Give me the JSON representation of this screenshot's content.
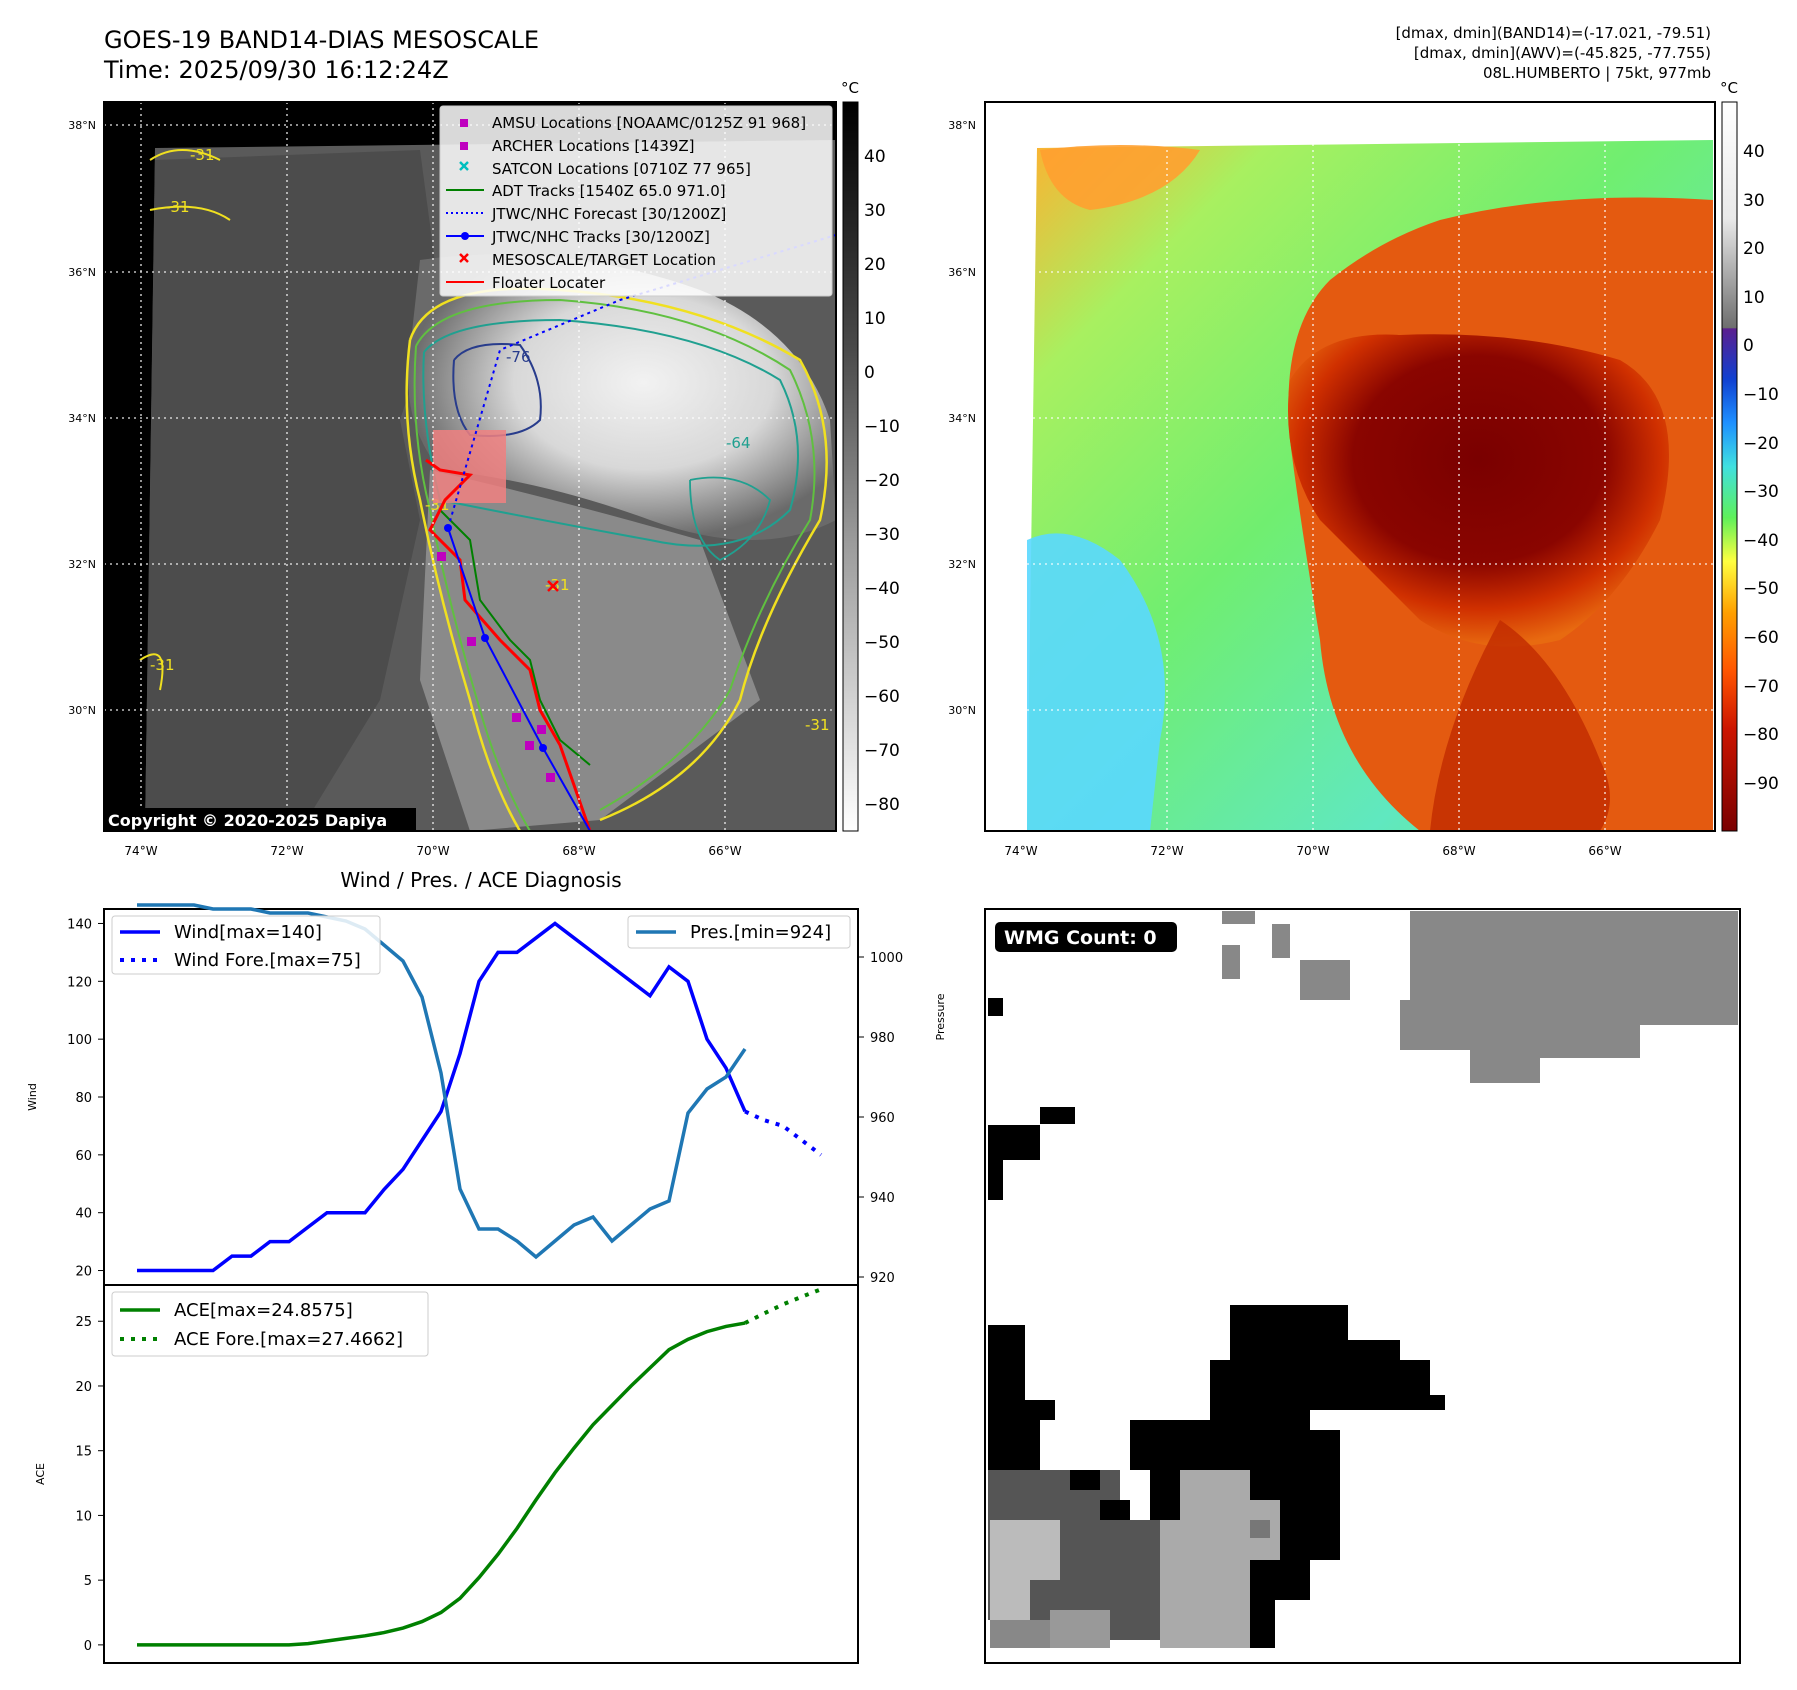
{
  "header": {
    "title_line1": "GOES-19 BAND14-DIAS MESOSCALE",
    "title_line2": "Time: 2025/09/30 16:12:24Z",
    "stats_line1": "[dmax, dmin](BAND14)=(-17.021, -79.51)",
    "stats_line2": "[dmax, dmin](AWV)=(-45.825, -77.755)",
    "stats_line3": "08L.HUMBERTO | 75kt, 977mb"
  },
  "map_axes": {
    "lat_labels": [
      "38°N",
      "36°N",
      "34°N",
      "32°N",
      "30°N"
    ],
    "lon_labels": [
      "74°W",
      "72°W",
      "70°W",
      "68°W",
      "66°W"
    ],
    "copyright": "Copyright © 2020-2025 Dapiya"
  },
  "colorbar_left": {
    "unit": "°C",
    "ticks": [
      "40",
      "30",
      "20",
      "10",
      "0",
      "−10",
      "−20",
      "−30",
      "−40",
      "−50",
      "−60",
      "−70",
      "−80"
    ]
  },
  "colorbar_right": {
    "unit": "°C",
    "ticks": [
      "40",
      "30",
      "20",
      "10",
      "0",
      "−10",
      "−20",
      "−30",
      "−40",
      "−50",
      "−60",
      "−70",
      "−80",
      "−90"
    ]
  },
  "legend": {
    "items": [
      {
        "label": "AMSU Locations [NOAAMC/0125Z 91 968]",
        "color": "#bf00bf",
        "marker": "square"
      },
      {
        "label": "ARCHER Locations [1439Z]",
        "color": "#bf00bf",
        "marker": "square"
      },
      {
        "label": "SATCON Locations [0710Z 77 965]",
        "color": "#00bfbf",
        "marker": "x"
      },
      {
        "label": "ADT Tracks [1540Z 65.0 971.0]",
        "color": "#008000",
        "marker": "line"
      },
      {
        "label": "JTWC/NHC Forecast [30/1200Z]",
        "color": "#0000ff",
        "marker": "dotted"
      },
      {
        "label": "JTWC/NHC Tracks [30/1200Z]",
        "color": "#0000ff",
        "marker": "line-dot"
      },
      {
        "label": "MESOSCALE/TARGET Location",
        "color": "#ff0000",
        "marker": "x"
      },
      {
        "label": "Floater Locater",
        "color": "#ff0000",
        "marker": "line"
      }
    ]
  },
  "contour_labels": [
    "-76",
    "-64",
    "-31",
    "-31",
    "-31",
    "-31",
    "-31",
    "-31"
  ],
  "wmg": {
    "label": "WMG Count: 0"
  },
  "chart_data": [
    {
      "type": "line",
      "title": "Wind / Pres. / ACE Diagnosis",
      "ylabel": "Wind",
      "ylabel_right": "Pressure",
      "ylim": [
        15,
        145
      ],
      "ylim_right": [
        918,
        1012
      ],
      "yticks": [
        20,
        40,
        60,
        80,
        100,
        120,
        140
      ],
      "yticks_right": [
        920,
        940,
        960,
        980,
        1000
      ],
      "x": [
        0,
        1,
        2,
        3,
        4,
        5,
        6,
        7,
        8,
        9,
        10,
        11,
        12,
        13,
        14,
        15,
        16,
        17,
        18,
        19,
        20,
        21,
        22,
        23,
        24,
        25,
        26,
        27,
        28,
        29,
        30,
        31,
        32,
        33,
        34,
        35,
        36
      ],
      "series": [
        {
          "name": "Wind[max=140]",
          "color": "#0000ff",
          "style": "solid",
          "x": [
            0,
            1,
            2,
            3,
            4,
            5,
            6,
            7,
            8,
            9,
            10,
            11,
            12,
            13,
            14,
            15,
            16,
            17,
            18,
            19,
            20,
            21,
            22,
            23,
            24,
            25,
            26,
            27,
            28,
            29,
            30,
            31,
            32
          ],
          "values": [
            20,
            20,
            20,
            20,
            20,
            25,
            25,
            30,
            30,
            35,
            40,
            40,
            40,
            48,
            55,
            65,
            75,
            95,
            120,
            130,
            130,
            135,
            140,
            135,
            130,
            125,
            120,
            115,
            125,
            120,
            100,
            90,
            75
          ]
        },
        {
          "name": "Wind Fore.[max=75]",
          "color": "#0000ff",
          "style": "dotted",
          "x": [
            32,
            33,
            34,
            35,
            36
          ],
          "values": [
            75,
            72,
            70,
            65,
            60
          ]
        },
        {
          "name": "Pres.[min=924]",
          "color": "#1f77b4",
          "style": "solid",
          "axis": "right",
          "x": [
            0,
            1,
            2,
            3,
            4,
            5,
            6,
            7,
            8,
            9,
            10,
            11,
            12,
            13,
            14,
            15,
            16,
            17,
            18,
            19,
            20,
            21,
            22,
            23,
            24,
            25,
            26,
            27,
            28,
            29,
            30,
            31,
            32
          ],
          "values": [
            1013,
            1013,
            1013,
            1013,
            1012,
            1012,
            1012,
            1011,
            1011,
            1011,
            1010,
            1009,
            1007,
            1003,
            999,
            990,
            971,
            942,
            932,
            932,
            929,
            925,
            929,
            933,
            935,
            929,
            933,
            937,
            939,
            961,
            967,
            970,
            977
          ]
        }
      ]
    },
    {
      "type": "line",
      "ylabel": "ACE",
      "ylim": [
        -1.4,
        27.8
      ],
      "yticks": [
        0,
        5,
        10,
        15,
        20,
        25
      ],
      "series": [
        {
          "name": "ACE[max=24.8575]",
          "color": "#008000",
          "style": "solid",
          "x": [
            0,
            1,
            2,
            3,
            4,
            5,
            6,
            7,
            8,
            9,
            10,
            11,
            12,
            13,
            14,
            15,
            16,
            17,
            18,
            19,
            20,
            21,
            22,
            23,
            24,
            25,
            26,
            27,
            28,
            29,
            30,
            31,
            32
          ],
          "values": [
            0,
            0,
            0,
            0,
            0,
            0,
            0,
            0,
            0,
            0.1,
            0.3,
            0.5,
            0.7,
            0.95,
            1.3,
            1.8,
            2.5,
            3.6,
            5.2,
            7.0,
            9.0,
            11.2,
            13.3,
            15.2,
            17.0,
            18.5,
            20.0,
            21.4,
            22.8,
            23.6,
            24.2,
            24.6,
            24.86
          ]
        },
        {
          "name": "ACE Fore.[max=27.4662]",
          "color": "#008000",
          "style": "dotted",
          "x": [
            32,
            33,
            34,
            35,
            36
          ],
          "values": [
            24.86,
            25.6,
            26.3,
            26.9,
            27.47
          ]
        }
      ]
    }
  ]
}
